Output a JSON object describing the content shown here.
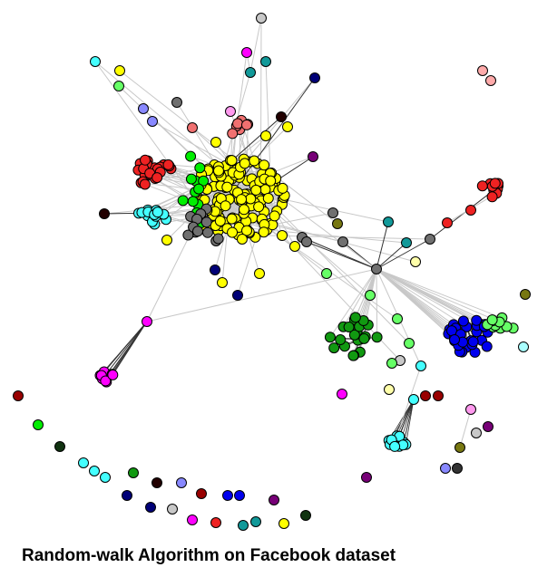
{
  "caption": "Random-walk Algorithm on Facebook dataset",
  "palette": {
    "yellow": "#ffff00",
    "red": "#ee2222",
    "salmon": "#f07070",
    "cyan": "#44ffff",
    "green": "#00ee00",
    "lightgreen": "#66ff66",
    "darkgreen": "#119911",
    "blue": "#0000ee",
    "magenta": "#ff00ff",
    "gray": "#707070",
    "silver": "#c8c8c8",
    "teal": "#119999",
    "navy": "#000077",
    "maroon": "#990000",
    "olive": "#777711",
    "purple": "#770077",
    "pink": "#ff99ee",
    "periwinkle": "#8888ff",
    "lightcyan": "#aaffff",
    "lightyellow": "#ffffaa",
    "darkgreenblack": "#113311",
    "darkmaroon": "#220000",
    "pinksalmon": "#ffaaaa",
    "darkgrey": "#333333",
    "edge": "#c8c8c8",
    "edge_dark": "#333333",
    "node_stroke": "#000000"
  },
  "graph": {
    "clusters": [
      {
        "name": "yellow-core",
        "color": "yellow",
        "count": 140
      },
      {
        "name": "red-left",
        "color": "red",
        "count": 22
      },
      {
        "name": "salmon-top",
        "color": "salmon",
        "count": 7
      },
      {
        "name": "cyan-left",
        "color": "cyan",
        "count": 14
      },
      {
        "name": "green-left",
        "color": "green",
        "count": 12
      },
      {
        "name": "gray-core",
        "color": "gray",
        "count": 14
      },
      {
        "name": "darkgreen-center",
        "color": "darkgreen",
        "count": 22
      },
      {
        "name": "blue-right",
        "color": "blue",
        "count": 30
      },
      {
        "name": "lightgreen-right",
        "color": "lightgreen",
        "count": 10
      },
      {
        "name": "red-right",
        "color": "red",
        "count": 10
      },
      {
        "name": "magenta-left",
        "color": "magenta",
        "count": 10
      },
      {
        "name": "cyan-bottom",
        "color": "cyan",
        "count": 10
      }
    ]
  }
}
